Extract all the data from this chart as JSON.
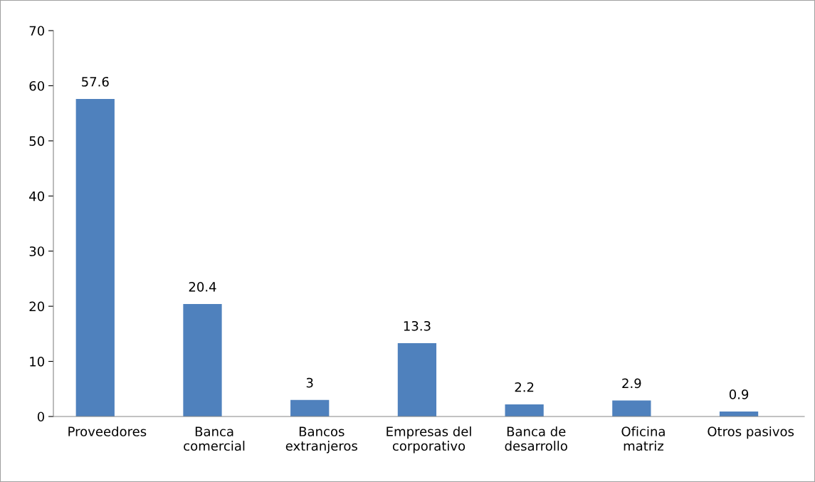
{
  "chart_data": {
    "type": "bar",
    "categories": [
      "Proveedores",
      "Banca\ncomercial",
      "Bancos\nextranjeros",
      "Empresas del\ncorporativo",
      "Banca de\ndesarrollo",
      "Oficina\nmatriz",
      "Otros pasivos"
    ],
    "values": [
      57.6,
      20.4,
      3,
      13.3,
      2.2,
      2.9,
      0.9
    ],
    "color": "#4f81bd",
    "ylim": [
      0,
      70
    ],
    "yticks": [
      0,
      10,
      20,
      30,
      40,
      50,
      60,
      70
    ],
    "data_labels": true,
    "grid": false,
    "legend": false
  }
}
